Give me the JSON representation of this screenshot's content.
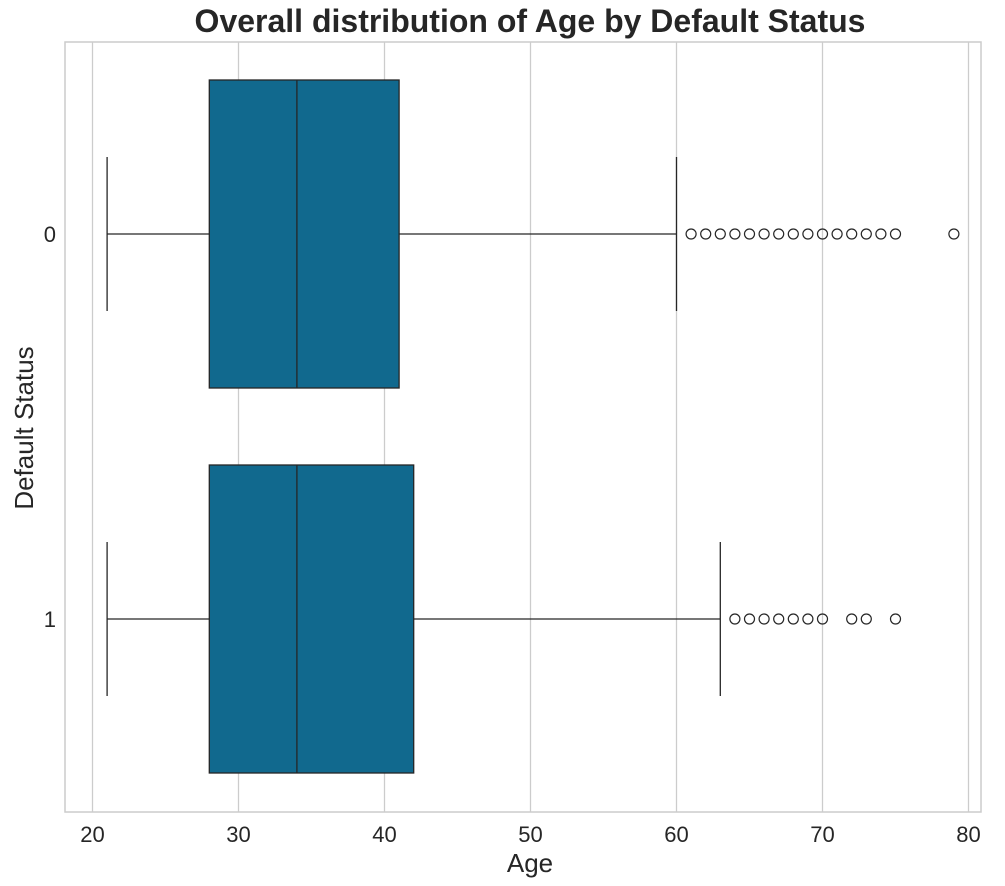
{
  "chart_data": {
    "type": "boxplot",
    "orientation": "horizontal",
    "title": "Overall distribution of Age by Default Status",
    "xlabel": "Age",
    "ylabel": "Default Status",
    "xlim": [
      18,
      82
    ],
    "xticks": [
      20,
      30,
      40,
      50,
      60,
      70,
      80
    ],
    "grid": "vertical",
    "box_color": "#11698e",
    "categories": [
      "0",
      "1"
    ],
    "boxes": [
      {
        "category": "0",
        "whisker_low": 21,
        "q1": 28,
        "median": 34,
        "q3": 41,
        "whisker_high": 60,
        "outliers": [
          61,
          62,
          63,
          64,
          65,
          66,
          67,
          68,
          69,
          70,
          71,
          72,
          73,
          74,
          75,
          79
        ]
      },
      {
        "category": "1",
        "whisker_low": 21,
        "q1": 28,
        "median": 34,
        "q3": 42,
        "whisker_high": 63,
        "outliers": [
          64,
          65,
          66,
          67,
          68,
          69,
          70,
          72,
          73,
          75
        ]
      }
    ]
  }
}
